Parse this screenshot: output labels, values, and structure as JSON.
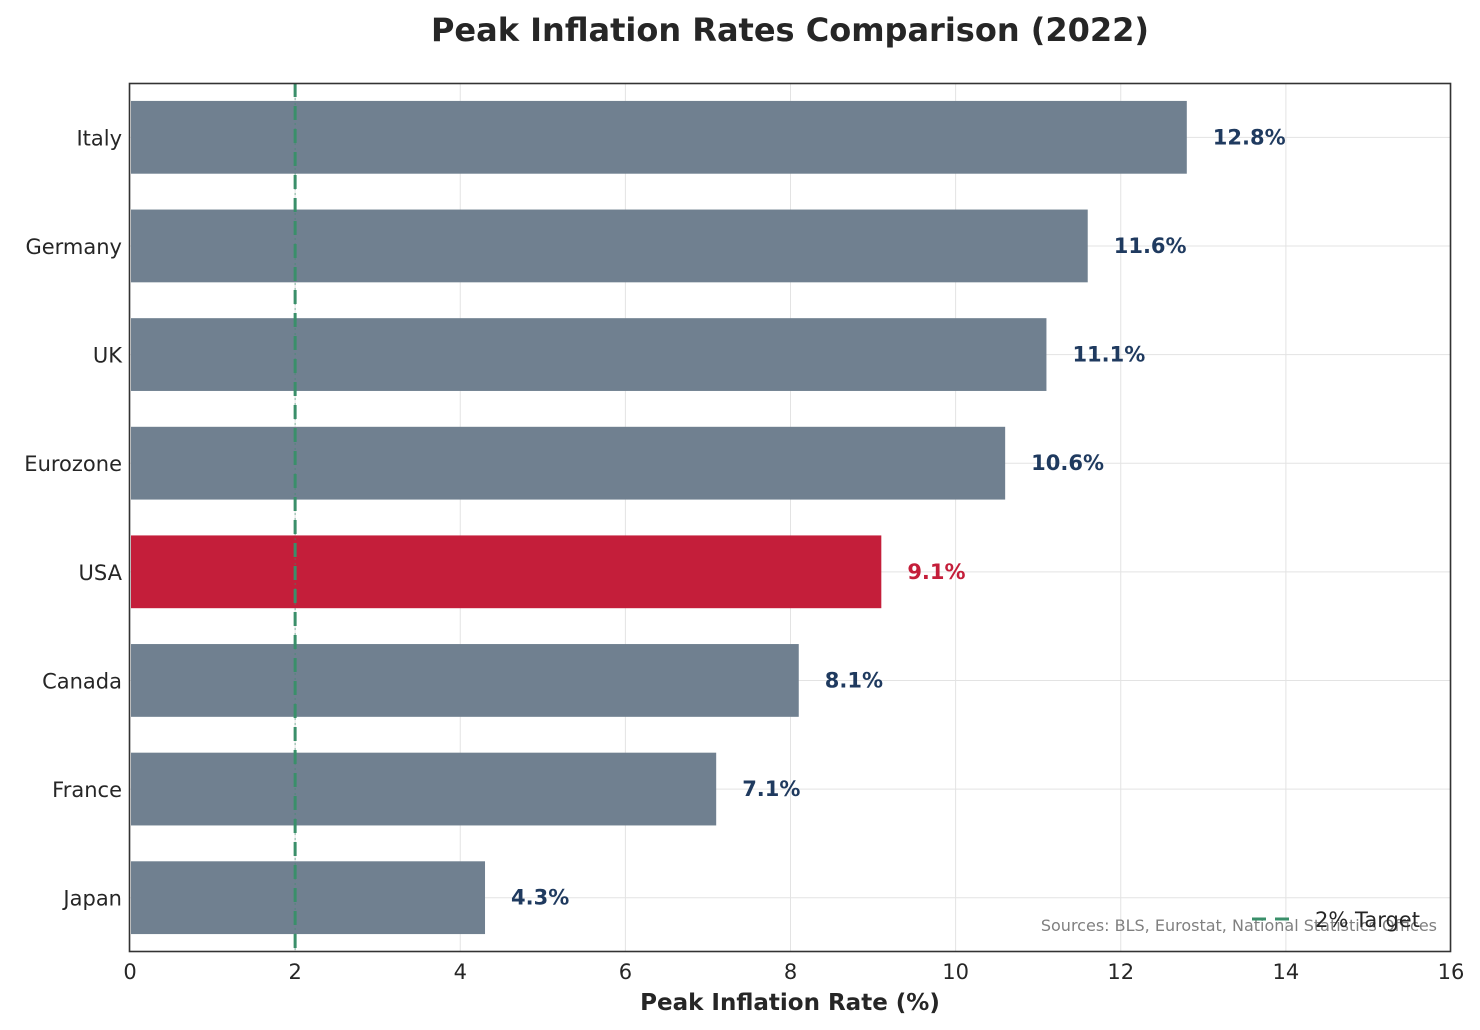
{
  "chart_data": {
    "type": "bar",
    "orientation": "horizontal",
    "title": "Peak Inflation Rates Comparison (2022)",
    "xlabel": "Peak Inflation Rate (%)",
    "ylabel": "",
    "xlim": [
      0,
      16
    ],
    "xticks": [
      0,
      2,
      4,
      6,
      8,
      10,
      12,
      14,
      16
    ],
    "grid": true,
    "categories": [
      "Italy",
      "Germany",
      "UK",
      "Eurozone",
      "USA",
      "Canada",
      "France",
      "Japan"
    ],
    "values": [
      12.8,
      11.6,
      11.1,
      10.6,
      9.1,
      8.1,
      7.1,
      4.3
    ],
    "value_labels": [
      "12.8%",
      "11.6%",
      "11.1%",
      "10.6%",
      "9.1%",
      "8.1%",
      "7.1%",
      "4.3%"
    ],
    "highlight_category": "USA",
    "colors": {
      "bar": "#708090",
      "highlight": "#C41E3A",
      "label": "#1F3A5F",
      "target_line": "#3A8F6A",
      "grid": "#e3e3e3"
    },
    "reference_line": {
      "x": 2,
      "label": "2% Target"
    },
    "legend": {
      "position": "lower-right",
      "entries": [
        "2% Target"
      ]
    },
    "annotation": "Sources: BLS, Eurostat, National Statistics Offices"
  }
}
